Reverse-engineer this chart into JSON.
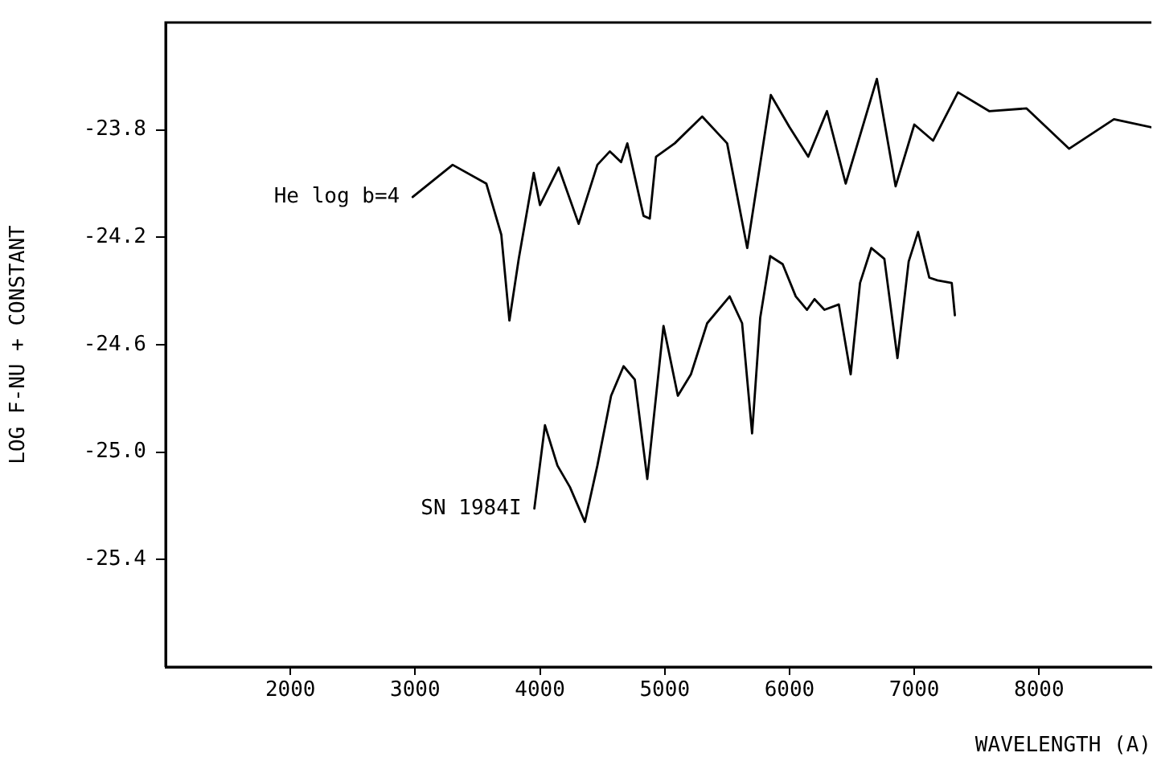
{
  "chart_data": {
    "type": "line",
    "xlabel": "WAVELENGTH (A)",
    "ylabel": "LOG F-NU + CONSTANT",
    "xlim": [
      1000,
      8900
    ],
    "xticks": [
      2000,
      3000,
      4000,
      5000,
      6000,
      7000,
      8000
    ],
    "ylim": [
      -25.8,
      -23.4
    ],
    "yticks": [
      -23.8,
      -24.2,
      -24.6,
      {
        "value": -25,
        "label": "-25.0"
      },
      -25.4
    ],
    "grid": false,
    "legend": false,
    "marker": "none",
    "line_style": "solid",
    "series": [
      {
        "name": "He log b=4",
        "color": "#000000",
        "x": [
          2980,
          3300,
          3570,
          3690,
          3755,
          3830,
          3950,
          4000,
          4150,
          4310,
          4460,
          4560,
          4650,
          4700,
          4830,
          4880,
          4930,
          5080,
          5300,
          5500,
          5661,
          5850,
          6000,
          6150,
          6300,
          6450,
          6700,
          6850,
          7000,
          7150,
          7350,
          7600,
          7900,
          8240,
          8600,
          8900
        ],
        "values": [
          -24.05,
          -23.93,
          -24.0,
          -24.19,
          -24.51,
          -24.28,
          -23.96,
          -24.08,
          -23.94,
          -24.15,
          -23.93,
          -23.88,
          -23.92,
          -23.85,
          -24.12,
          -24.13,
          -23.9,
          -23.85,
          -23.75,
          -23.85,
          -24.24,
          -23.67,
          -23.79,
          -23.9,
          -23.73,
          -24.0,
          -23.61,
          -24.01,
          -23.78,
          -23.84,
          -23.66,
          -23.73,
          -23.72,
          -23.87,
          -23.76,
          -23.79
        ]
      },
      {
        "name": "SN 1984I",
        "color": "#000000",
        "x": [
          3955,
          4040,
          4140,
          4240,
          4360,
          4460,
          4570,
          4670,
          4760,
          4860,
          4990,
          5105,
          5210,
          5340,
          5520,
          5620,
          5700,
          5765,
          5845,
          5945,
          6050,
          6140,
          6200,
          6280,
          6395,
          6490,
          6565,
          6655,
          6760,
          6865,
          6955,
          7030,
          7120,
          7185,
          7300,
          7325
        ],
        "values": [
          -25.21,
          -24.9,
          -25.05,
          -25.13,
          -25.26,
          -25.05,
          -24.79,
          -24.68,
          -24.73,
          -25.1,
          -24.53,
          -24.79,
          -24.71,
          -24.52,
          -24.42,
          -24.52,
          -24.93,
          -24.5,
          -24.27,
          -24.3,
          -24.42,
          -24.47,
          -24.43,
          -24.47,
          -24.45,
          -24.71,
          -24.37,
          -24.24,
          -24.28,
          -24.65,
          -24.29,
          -24.18,
          -24.35,
          -24.36,
          -24.37,
          -24.49
        ]
      }
    ]
  }
}
